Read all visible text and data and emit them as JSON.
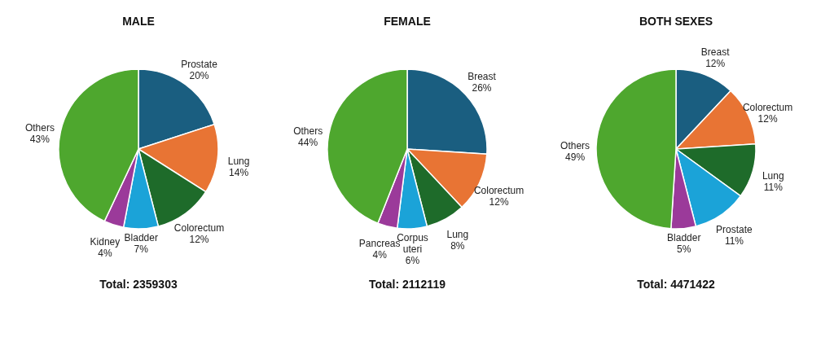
{
  "chart_data": [
    {
      "type": "pie",
      "title": "MALE",
      "categories": [
        "Prostate",
        "Lung",
        "Colorectum",
        "Bladder",
        "Kidney",
        "Others"
      ],
      "values": [
        20,
        14,
        12,
        7,
        4,
        43
      ],
      "value_labels": [
        "20%",
        "14%",
        "12%",
        "7%",
        "4%",
        "43%"
      ],
      "colors": [
        "#1a5e80",
        "#e87434",
        "#1e6b2a",
        "#1ba3d8",
        "#9b3a9a",
        "#4ea72e"
      ],
      "annotations": [
        "Total: 2359303"
      ]
    },
    {
      "type": "pie",
      "title": "FEMALE",
      "categories": [
        "Breast",
        "Colorectum",
        "Lung",
        "Corpus uteri",
        "Pancreas",
        "Others"
      ],
      "values": [
        26,
        12,
        8,
        6,
        4,
        44
      ],
      "value_labels": [
        "26%",
        "12%",
        "8%",
        "6%",
        "4%",
        "44%"
      ],
      "colors": [
        "#1a5e80",
        "#e87434",
        "#1e6b2a",
        "#1ba3d8",
        "#9b3a9a",
        "#4ea72e"
      ],
      "annotations": [
        "Total: 2112119"
      ]
    },
    {
      "type": "pie",
      "title": "BOTH SEXES",
      "categories": [
        "Breast",
        "Colorectum",
        "Lung",
        "Prostate",
        "Bladder",
        "Others"
      ],
      "values": [
        12,
        12,
        11,
        11,
        5,
        49
      ],
      "value_labels": [
        "12%",
        "12%",
        "11%",
        "11%",
        "5%",
        "49%"
      ],
      "colors": [
        "#1a5e80",
        "#e87434",
        "#1e6b2a",
        "#1ba3d8",
        "#9b3a9a",
        "#4ea72e"
      ],
      "annotations": [
        "Total: 4471422"
      ]
    }
  ]
}
